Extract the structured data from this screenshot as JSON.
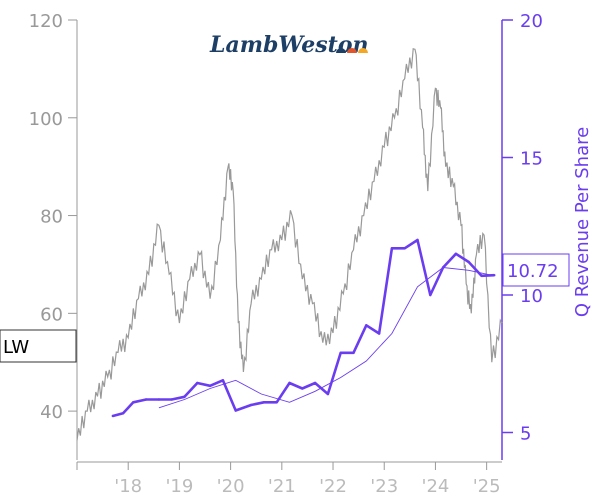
{
  "chart_data": {
    "type": "line",
    "logo_text": "LambWeston",
    "ticker": "LW",
    "last_value_label": "10.72",
    "left_axis": {
      "min": 30,
      "max": 120,
      "ticks": [
        40,
        60,
        80,
        100,
        120
      ],
      "tick_labels": [
        "40",
        "60",
        "80",
        "100",
        "120"
      ]
    },
    "right_axis": {
      "label": "Q Revenue Per Share",
      "min": 4,
      "max": 20,
      "ticks": [
        5,
        10,
        15,
        20
      ],
      "tick_labels": [
        "5",
        "10",
        "15",
        "20"
      ]
    },
    "x_axis": {
      "min": 2017.0,
      "max": 2025.3,
      "ticks": [
        2018,
        2019,
        2020,
        2021,
        2022,
        2023,
        2024,
        2025
      ],
      "tick_labels": [
        "'18",
        "'19",
        "'20",
        "'21",
        "'22",
        "'23",
        "'24",
        "'25"
      ]
    },
    "colors": {
      "price": "#999999",
      "revenue": "#6a3df0",
      "axis_left": "#999999",
      "axis_right": "#6a3df0"
    },
    "price_series": {
      "x": [
        2017.0,
        2017.2,
        2017.4,
        2017.6,
        2017.8,
        2018.0,
        2018.2,
        2018.4,
        2018.6,
        2018.8,
        2019.0,
        2019.2,
        2019.4,
        2019.6,
        2019.8,
        2019.95,
        2020.05,
        2020.15,
        2020.25,
        2020.4,
        2020.6,
        2020.8,
        2021.0,
        2021.2,
        2021.4,
        2021.6,
        2021.8,
        2022.0,
        2022.2,
        2022.4,
        2022.6,
        2022.8,
        2023.0,
        2023.2,
        2023.4,
        2023.6,
        2023.75,
        2023.85,
        2024.0,
        2024.1,
        2024.2,
        2024.35,
        2024.5,
        2024.6,
        2024.7,
        2024.8,
        2024.95,
        2025.1,
        2025.3
      ],
      "y": [
        34,
        40,
        43,
        47,
        52,
        55,
        63,
        68,
        78,
        68,
        58,
        67,
        72,
        63,
        75,
        90,
        85,
        58,
        48,
        62,
        67,
        73,
        75,
        80,
        67,
        62,
        54,
        56,
        64,
        73,
        80,
        87,
        94,
        100,
        108,
        114,
        98,
        85,
        106,
        102,
        90,
        86,
        78,
        66,
        60,
        72,
        76,
        50,
        58
      ],
      "noise": [
        0.0,
        1.5,
        -1.0,
        2.0,
        -1.5,
        1.0,
        -2.0,
        1.8,
        -1.2,
        0.8,
        -1.6,
        1.4,
        -0.9,
        2.1,
        -1.8,
        1.2,
        -0.7,
        1.9,
        -1.3,
        0.6,
        -2.2,
        1.7,
        -1.1,
        0.9,
        -1.5,
        2.0,
        -0.8,
        1.3,
        -1.9,
        1.1
      ]
    },
    "revenue_series": {
      "x": [
        2017.7,
        2017.9,
        2018.1,
        2018.35,
        2018.6,
        2018.85,
        2019.1,
        2019.35,
        2019.6,
        2019.85,
        2020.1,
        2020.4,
        2020.65,
        2020.9,
        2021.15,
        2021.4,
        2021.65,
        2021.9,
        2022.15,
        2022.4,
        2022.65,
        2022.9,
        2023.15,
        2023.4,
        2023.65,
        2023.9,
        2024.15,
        2024.4,
        2024.65,
        2024.9,
        2025.15
      ],
      "y": [
        5.6,
        5.7,
        6.1,
        6.2,
        6.2,
        6.2,
        6.3,
        6.8,
        6.7,
        6.9,
        5.8,
        6.0,
        6.1,
        6.1,
        6.8,
        6.6,
        6.8,
        6.4,
        7.9,
        7.9,
        8.9,
        8.6,
        11.7,
        11.7,
        12.0,
        10.0,
        11.0,
        11.5,
        11.2,
        10.7,
        10.72
      ]
    },
    "revenue_avg_series": {
      "x": [
        2018.6,
        2019.1,
        2019.6,
        2020.1,
        2020.6,
        2021.15,
        2021.65,
        2022.15,
        2022.65,
        2023.15,
        2023.65,
        2024.15,
        2024.65,
        2025.15
      ],
      "y": [
        5.9,
        6.2,
        6.6,
        6.9,
        6.4,
        6.1,
        6.5,
        7.0,
        7.6,
        8.6,
        10.3,
        11.0,
        10.9,
        10.7
      ]
    }
  }
}
